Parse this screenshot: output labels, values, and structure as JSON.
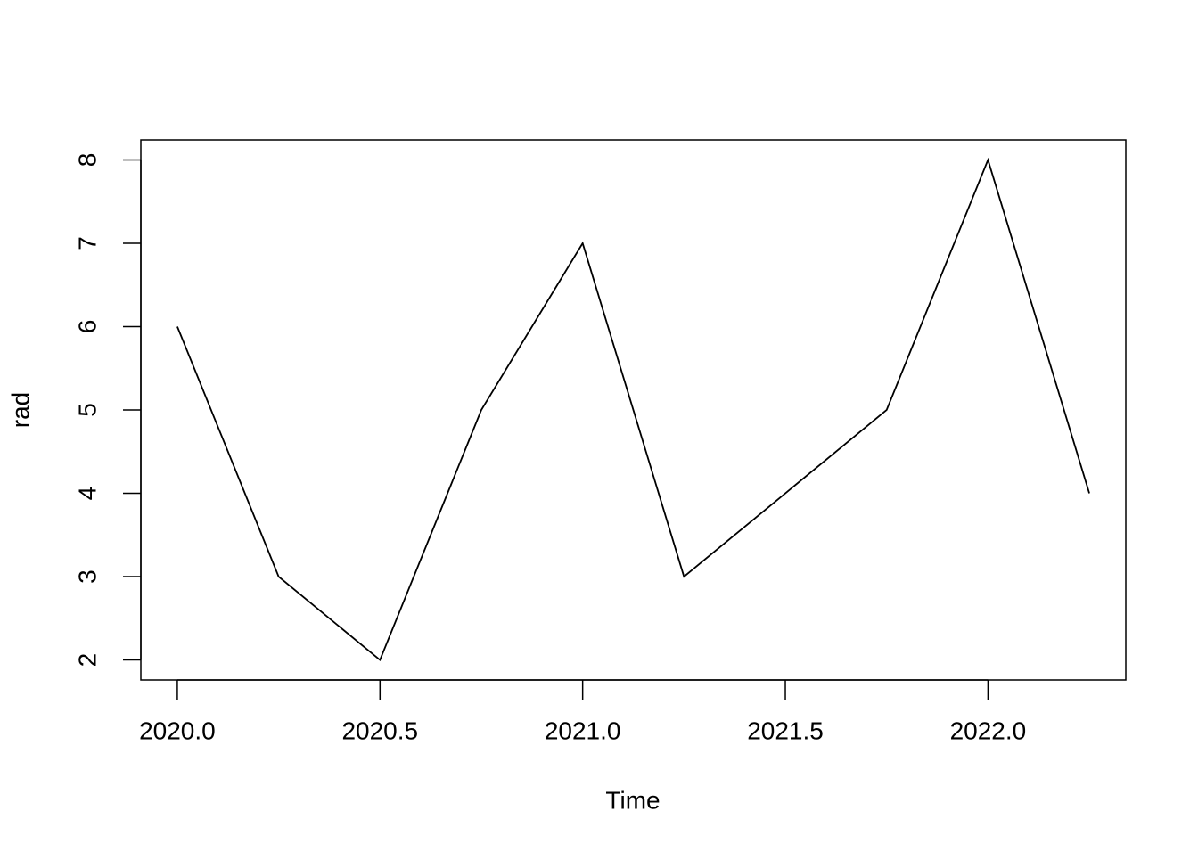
{
  "chart_data": {
    "type": "line",
    "x_label": "Time",
    "y_label": "rad",
    "x": [
      2020.0,
      2020.25,
      2020.5,
      2020.75,
      2021.0,
      2021.25,
      2021.5,
      2021.75,
      2022.0,
      2022.25
    ],
    "values": [
      6,
      3,
      2,
      5,
      7,
      3,
      4,
      5,
      8,
      4
    ],
    "color": "#000000",
    "xlim": [
      2019.91,
      2022.34
    ],
    "xticks": [
      {
        "value": 2020,
        "label": "2020.0"
      },
      2020.5,
      {
        "value": 2021,
        "label": "2021.0"
      },
      2021.5,
      {
        "value": 2022,
        "label": "2022.0"
      }
    ],
    "ylim": [
      1.76,
      8.24
    ],
    "yticks": [
      2,
      3,
      4,
      5,
      6,
      7,
      8
    ],
    "grid": false
  }
}
